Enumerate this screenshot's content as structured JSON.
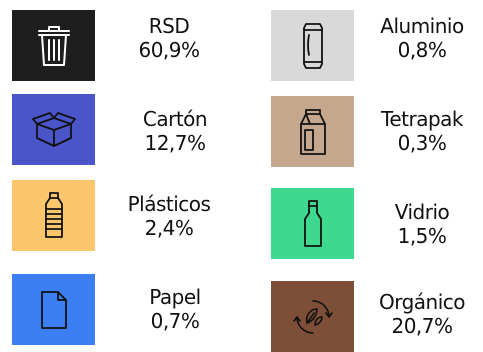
{
  "items": [
    {
      "name": "RSD",
      "percent": "60,9%",
      "icon": "trash-bin-icon",
      "color": "#1e1e1e"
    },
    {
      "name": "Aluminio",
      "percent": "0,8%",
      "icon": "aluminium-can-icon",
      "color": "#d9d9d9"
    },
    {
      "name": "Cartón",
      "percent": "12,7%",
      "icon": "cardboard-box-icon",
      "color": "#4a55c9"
    },
    {
      "name": "Tetrapak",
      "percent": "0,3%",
      "icon": "milk-carton-icon",
      "color": "#c4a78d"
    },
    {
      "name": "Plásticos",
      "percent": "2,4%",
      "icon": "plastic-bottle-icon",
      "color": "#fbc66c"
    },
    {
      "name": "Vidrio",
      "percent": "1,5%",
      "icon": "glass-bottle-icon",
      "color": "#3ed98e"
    },
    {
      "name": "Papel",
      "percent": "0,7%",
      "icon": "paper-sheet-icon",
      "color": "#3c7ff2"
    },
    {
      "name": "Orgánico",
      "percent": "20,7%",
      "icon": "organic-compost-icon",
      "color": "#7e4f38"
    }
  ]
}
